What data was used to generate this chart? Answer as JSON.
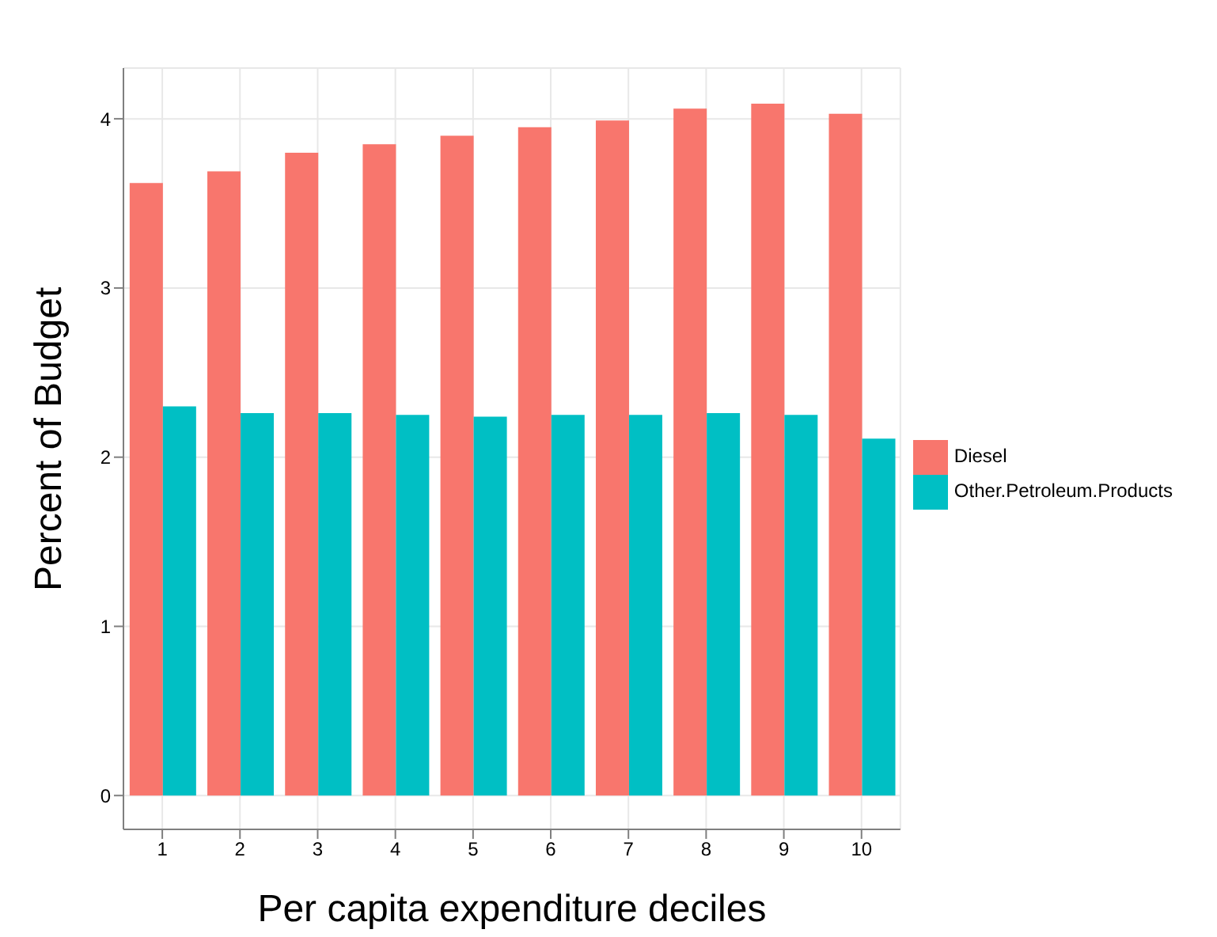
{
  "chart_data": {
    "type": "bar",
    "xlabel": "Per capita expenditure deciles",
    "ylabel": "Percent of Budget",
    "categories": [
      "1",
      "2",
      "3",
      "4",
      "5",
      "6",
      "7",
      "8",
      "9",
      "10"
    ],
    "series": [
      {
        "name": "Diesel",
        "color": "#f8766d",
        "values": [
          3.62,
          3.69,
          3.8,
          3.85,
          3.9,
          3.95,
          3.99,
          4.06,
          4.09,
          4.03
        ]
      },
      {
        "name": "Other.Petroleum.Products",
        "color": "#00bfc4",
        "values": [
          2.3,
          2.26,
          2.26,
          2.25,
          2.24,
          2.25,
          2.25,
          2.26,
          2.25,
          2.11
        ]
      }
    ],
    "ylim": [
      -0.2,
      4.3
    ],
    "yticks": [
      0,
      1,
      2,
      3,
      4
    ],
    "grid": true,
    "legend": "right"
  }
}
